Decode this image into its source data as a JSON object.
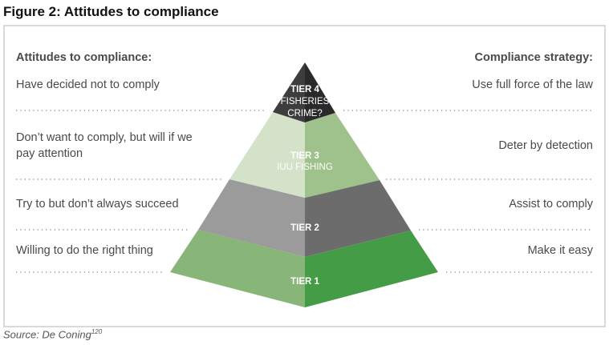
{
  "title": "Figure 2: Attitudes to compliance",
  "left": {
    "heading": "Attitudes to compliance:",
    "items": [
      "Have decided not to comply",
      "Don’t want to comply, but will if we",
      "pay attention",
      "Try to but don’t always succeed",
      "Willing to do the right thing"
    ]
  },
  "right": {
    "heading": "Compliance strategy:",
    "items": [
      "Use full force of the law",
      "Deter by detection",
      "Assist to comply",
      "Make it easy"
    ]
  },
  "pyramid": {
    "tier4": {
      "title": "TIER 4",
      "line1": "FISHERIES",
      "line2": "CRIME?"
    },
    "tier3": {
      "title": "TIER 3",
      "line1": "IUU FISHING"
    },
    "tier2": {
      "title": "TIER 2"
    },
    "tier1": {
      "title": "TIER 1"
    }
  },
  "colors": {
    "tier4": [
      "#3d3d3d",
      "#2a2a2a"
    ],
    "tier3": [
      "#d3e2c8",
      "#9fc18c"
    ],
    "tier2": [
      "#9b9b9b",
      "#6c6c6c"
    ],
    "tier1": [
      "#87b678",
      "#449c47"
    ]
  },
  "source": {
    "text": "Source: De Coning",
    "ref": "120"
  }
}
